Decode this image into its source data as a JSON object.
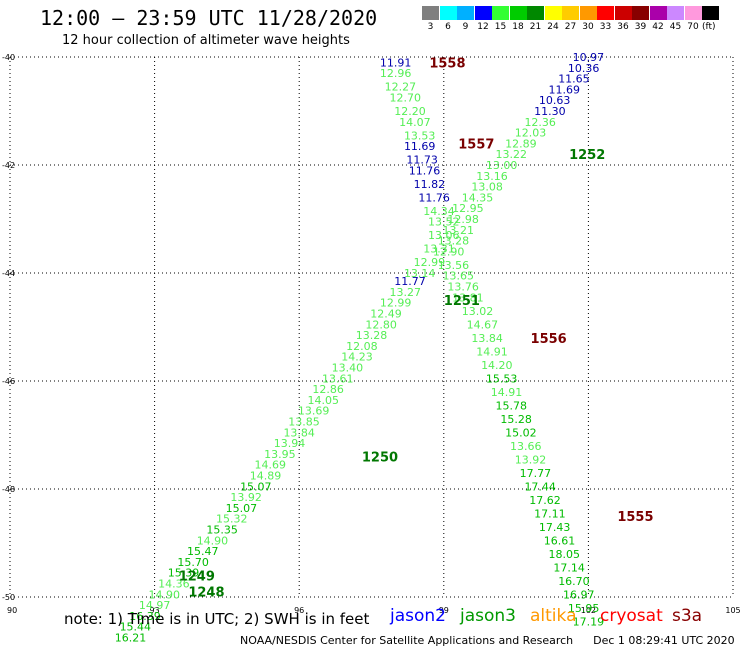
{
  "header": {
    "title": "12:00 – 23:59 UTC 11/28/2020",
    "subtitle": "12 hour collection of altimeter wave heights"
  },
  "legend": {
    "unit": "(ft)",
    "levels": [
      {
        "label": "3",
        "color": "#7f7f7f"
      },
      {
        "label": "6",
        "color": "#00ffff"
      },
      {
        "label": "9",
        "color": "#00b0ff"
      },
      {
        "label": "12",
        "color": "#0000ff"
      },
      {
        "label": "15",
        "color": "#33ff33"
      },
      {
        "label": "18",
        "color": "#00cc00"
      },
      {
        "label": "21",
        "color": "#008800"
      },
      {
        "label": "24",
        "color": "#ffff00"
      },
      {
        "label": "27",
        "color": "#ffcc00"
      },
      {
        "label": "30",
        "color": "#ff9900"
      },
      {
        "label": "33",
        "color": "#ff0000"
      },
      {
        "label": "36",
        "color": "#cc0000"
      },
      {
        "label": "39",
        "color": "#880000"
      },
      {
        "label": "42",
        "color": "#aa00aa"
      },
      {
        "label": "45",
        "color": "#cc88ff"
      },
      {
        "label": "70",
        "color": "#ff99dd"
      },
      {
        "label": "",
        "color": "#000000"
      }
    ]
  },
  "note": "note: 1) Time is in UTC; 2) SWH is in feet",
  "satellites": [
    {
      "name": "jason2",
      "color": "#0000ff"
    },
    {
      "name": "jason3",
      "color": "#009900"
    },
    {
      "name": "altika",
      "color": "#ff9900"
    },
    {
      "name": "cryosat",
      "color": "#ff0000"
    },
    {
      "name": "s3a",
      "color": "#880000"
    }
  ],
  "footer": {
    "credit": "NOAA/NESDIS Center for Satellite Applications and Research",
    "timestamp": "Dec  1 08:29:41 UTC 2020"
  },
  "colors": {
    "blue": "#0000aa",
    "light_green": "#55ee55",
    "green": "#00bb00",
    "dark_green": "#007700",
    "maroon": "#7a0000"
  },
  "chart_data": {
    "type": "scatter",
    "xlim": [
      90,
      105
    ],
    "ylim": [
      -50,
      -40
    ],
    "x_ticks": [
      "90",
      "93",
      "96",
      "99",
      "102",
      "105"
    ],
    "y_ticks": [
      "-40",
      "-42",
      "-44",
      "-46",
      "-48",
      "-50"
    ],
    "grid": true,
    "track_labels": [
      {
        "text": "1558",
        "x": 98.7,
        "y": -40.1,
        "color": "maroon"
      },
      {
        "text": "1557",
        "x": 99.3,
        "y": -41.6,
        "color": "maroon"
      },
      {
        "text": "1252",
        "x": 101.6,
        "y": -41.8,
        "color": "dark_green"
      },
      {
        "text": "1251",
        "x": 99.0,
        "y": -44.5,
        "color": "dark_green"
      },
      {
        "text": "1556",
        "x": 100.8,
        "y": -45.2,
        "color": "maroon"
      },
      {
        "text": "1250",
        "x": 97.3,
        "y": -47.4,
        "color": "dark_green"
      },
      {
        "text": "1555",
        "x": 102.6,
        "y": -48.5,
        "color": "maroon"
      },
      {
        "text": "1249",
        "x": 93.5,
        "y": -49.6,
        "color": "dark_green"
      },
      {
        "text": "1248",
        "x": 93.7,
        "y": -49.9,
        "color": "dark_green"
      }
    ],
    "points": [
      {
        "v": "11.91",
        "x": 98.0,
        "y": -40.1,
        "color": "blue"
      },
      {
        "v": "12.96",
        "x": 98.0,
        "y": -40.3,
        "color": "light_green"
      },
      {
        "v": "12.27",
        "x": 98.1,
        "y": -40.55,
        "color": "light_green"
      },
      {
        "v": "12.70",
        "x": 98.2,
        "y": -40.75,
        "color": "light_green"
      },
      {
        "v": "12.20",
        "x": 98.3,
        "y": -41.0,
        "color": "light_green"
      },
      {
        "v": "14.07",
        "x": 98.4,
        "y": -41.2,
        "color": "light_green"
      },
      {
        "v": "13.53",
        "x": 98.5,
        "y": -41.45,
        "color": "light_green"
      },
      {
        "v": "11.69",
        "x": 98.5,
        "y": -41.65,
        "color": "blue"
      },
      {
        "v": "11.73",
        "x": 98.55,
        "y": -41.9,
        "color": "blue"
      },
      {
        "v": "11.76",
        "x": 98.6,
        "y": -42.1,
        "color": "blue"
      },
      {
        "v": "11.82",
        "x": 98.7,
        "y": -42.35,
        "color": "blue"
      },
      {
        "v": "11.76",
        "x": 98.8,
        "y": -42.6,
        "color": "blue"
      },
      {
        "v": "14.34",
        "x": 98.9,
        "y": -42.85,
        "color": "light_green"
      },
      {
        "v": "13.52",
        "x": 99.0,
        "y": -43.05,
        "color": "light_green"
      },
      {
        "v": "13.06",
        "x": 99.0,
        "y": -43.3,
        "color": "light_green"
      },
      {
        "v": "13.31",
        "x": 98.9,
        "y": -43.55,
        "color": "light_green"
      },
      {
        "v": "12.99",
        "x": 98.7,
        "y": -43.8,
        "color": "light_green"
      },
      {
        "v": "13.14",
        "x": 98.5,
        "y": -44.0,
        "color": "light_green"
      },
      {
        "v": "11.77",
        "x": 98.3,
        "y": -44.15,
        "color": "blue"
      },
      {
        "v": "13.27",
        "x": 98.2,
        "y": -44.35,
        "color": "light_green"
      },
      {
        "v": "12.99",
        "x": 98.0,
        "y": -44.55,
        "color": "light_green"
      },
      {
        "v": "12.49",
        "x": 97.8,
        "y": -44.75,
        "color": "light_green"
      },
      {
        "v": "12.80",
        "x": 97.7,
        "y": -44.95,
        "color": "light_green"
      },
      {
        "v": "13.28",
        "x": 97.5,
        "y": -45.15,
        "color": "light_green"
      },
      {
        "v": "12.08",
        "x": 97.3,
        "y": -45.35,
        "color": "light_green"
      },
      {
        "v": "14.23",
        "x": 97.2,
        "y": -45.55,
        "color": "light_green"
      },
      {
        "v": "13.40",
        "x": 97.0,
        "y": -45.75,
        "color": "light_green"
      },
      {
        "v": "13.61",
        "x": 96.8,
        "y": -45.95,
        "color": "light_green"
      },
      {
        "v": "12.86",
        "x": 96.6,
        "y": -46.15,
        "color": "light_green"
      },
      {
        "v": "14.05",
        "x": 96.5,
        "y": -46.35,
        "color": "light_green"
      },
      {
        "v": "13.69",
        "x": 96.3,
        "y": -46.55,
        "color": "light_green"
      },
      {
        "v": "13.85",
        "x": 96.1,
        "y": -46.75,
        "color": "light_green"
      },
      {
        "v": "13.84",
        "x": 96.0,
        "y": -46.95,
        "color": "light_green"
      },
      {
        "v": "13.94",
        "x": 95.8,
        "y": -47.15,
        "color": "light_green"
      },
      {
        "v": "13.95",
        "x": 95.6,
        "y": -47.35,
        "color": "light_green"
      },
      {
        "v": "14.69",
        "x": 95.4,
        "y": -47.55,
        "color": "light_green"
      },
      {
        "v": "14.89",
        "x": 95.3,
        "y": -47.75,
        "color": "light_green"
      },
      {
        "v": "15.07",
        "x": 95.1,
        "y": -47.95,
        "color": "green"
      },
      {
        "v": "13.92",
        "x": 94.9,
        "y": -48.15,
        "color": "light_green"
      },
      {
        "v": "15.07",
        "x": 94.8,
        "y": -48.35,
        "color": "green"
      },
      {
        "v": "15.32",
        "x": 94.6,
        "y": -48.55,
        "color": "light_green"
      },
      {
        "v": "15.35",
        "x": 94.4,
        "y": -48.75,
        "color": "green"
      },
      {
        "v": "14.90",
        "x": 94.2,
        "y": -48.95,
        "color": "light_green"
      },
      {
        "v": "15.47",
        "x": 94.0,
        "y": -49.15,
        "color": "green"
      },
      {
        "v": "15.70",
        "x": 93.8,
        "y": -49.35,
        "color": "green"
      },
      {
        "v": "15.39",
        "x": 93.6,
        "y": -49.55,
        "color": "green"
      },
      {
        "v": "14.36",
        "x": 93.4,
        "y": -49.75,
        "color": "light_green"
      },
      {
        "v": "14.90",
        "x": 93.2,
        "y": -49.95,
        "color": "light_green"
      },
      {
        "v": "14.97",
        "x": 93.0,
        "y": -50.15,
        "color": "light_green"
      },
      {
        "v": "16.39",
        "x": 92.8,
        "y": -50.35,
        "color": "green"
      },
      {
        "v": "15.44",
        "x": 92.6,
        "y": -50.55,
        "color": "green"
      },
      {
        "v": "16.21",
        "x": 92.5,
        "y": -50.75,
        "color": "green"
      },
      {
        "v": "10.97",
        "x": 102.0,
        "y": -40.0,
        "color": "blue"
      },
      {
        "v": "10.36",
        "x": 101.9,
        "y": -40.2,
        "color": "blue"
      },
      {
        "v": "11.65",
        "x": 101.7,
        "y": -40.4,
        "color": "blue"
      },
      {
        "v": "11.69",
        "x": 101.5,
        "y": -40.6,
        "color": "blue"
      },
      {
        "v": "10.63",
        "x": 101.3,
        "y": -40.8,
        "color": "blue"
      },
      {
        "v": "11.30",
        "x": 101.2,
        "y": -41.0,
        "color": "blue"
      },
      {
        "v": "12.36",
        "x": 101.0,
        "y": -41.2,
        "color": "light_green"
      },
      {
        "v": "12.03",
        "x": 100.8,
        "y": -41.4,
        "color": "light_green"
      },
      {
        "v": "12.89",
        "x": 100.6,
        "y": -41.6,
        "color": "light_green"
      },
      {
        "v": "13.22",
        "x": 100.4,
        "y": -41.8,
        "color": "light_green"
      },
      {
        "v": "13.00",
        "x": 100.2,
        "y": -42.0,
        "color": "light_green"
      },
      {
        "v": "13.16",
        "x": 100.0,
        "y": -42.2,
        "color": "light_green"
      },
      {
        "v": "13.08",
        "x": 99.9,
        "y": -42.4,
        "color": "light_green"
      },
      {
        "v": "14.35",
        "x": 99.7,
        "y": -42.6,
        "color": "light_green"
      },
      {
        "v": "12.95",
        "x": 99.5,
        "y": -42.8,
        "color": "light_green"
      },
      {
        "v": "12.98",
        "x": 99.4,
        "y": -43.0,
        "color": "light_green"
      },
      {
        "v": "13.21",
        "x": 99.3,
        "y": -43.2,
        "color": "light_green"
      },
      {
        "v": "13.28",
        "x": 99.2,
        "y": -43.4,
        "color": "light_green"
      },
      {
        "v": "12.90",
        "x": 99.1,
        "y": -43.6,
        "color": "light_green"
      },
      {
        "v": "13.56",
        "x": 99.2,
        "y": -43.85,
        "color": "light_green"
      },
      {
        "v": "13.65",
        "x": 99.3,
        "y": -44.05,
        "color": "light_green"
      },
      {
        "v": "13.76",
        "x": 99.4,
        "y": -44.25,
        "color": "light_green"
      },
      {
        "v": "13.81",
        "x": 99.5,
        "y": -44.45,
        "color": "light_green"
      },
      {
        "v": "13.02",
        "x": 99.7,
        "y": -44.7,
        "color": "light_green"
      },
      {
        "v": "14.67",
        "x": 99.8,
        "y": -44.95,
        "color": "light_green"
      },
      {
        "v": "13.84",
        "x": 99.9,
        "y": -45.2,
        "color": "light_green"
      },
      {
        "v": "14.91",
        "x": 100.0,
        "y": -45.45,
        "color": "light_green"
      },
      {
        "v": "14.20",
        "x": 100.1,
        "y": -45.7,
        "color": "light_green"
      },
      {
        "v": "15.53",
        "x": 100.2,
        "y": -45.95,
        "color": "green"
      },
      {
        "v": "14.91",
        "x": 100.3,
        "y": -46.2,
        "color": "light_green"
      },
      {
        "v": "15.78",
        "x": 100.4,
        "y": -46.45,
        "color": "green"
      },
      {
        "v": "15.28",
        "x": 100.5,
        "y": -46.7,
        "color": "green"
      },
      {
        "v": "15.02",
        "x": 100.6,
        "y": -46.95,
        "color": "green"
      },
      {
        "v": "13.66",
        "x": 100.7,
        "y": -47.2,
        "color": "light_green"
      },
      {
        "v": "13.92",
        "x": 100.8,
        "y": -47.45,
        "color": "light_green"
      },
      {
        "v": "17.77",
        "x": 100.9,
        "y": -47.7,
        "color": "green"
      },
      {
        "v": "17.44",
        "x": 101.0,
        "y": -47.95,
        "color": "green"
      },
      {
        "v": "17.62",
        "x": 101.1,
        "y": -48.2,
        "color": "green"
      },
      {
        "v": "17.11",
        "x": 101.2,
        "y": -48.45,
        "color": "green"
      },
      {
        "v": "17.43",
        "x": 101.3,
        "y": -48.7,
        "color": "green"
      },
      {
        "v": "16.61",
        "x": 101.4,
        "y": -48.95,
        "color": "green"
      },
      {
        "v": "18.05",
        "x": 101.5,
        "y": -49.2,
        "color": "green"
      },
      {
        "v": "17.14",
        "x": 101.6,
        "y": -49.45,
        "color": "green"
      },
      {
        "v": "16.70",
        "x": 101.7,
        "y": -49.7,
        "color": "green"
      },
      {
        "v": "16.97",
        "x": 101.8,
        "y": -49.95,
        "color": "green"
      },
      {
        "v": "15.95",
        "x": 101.9,
        "y": -50.2,
        "color": "green"
      },
      {
        "v": "17.19",
        "x": 102.0,
        "y": -50.45,
        "color": "green"
      }
    ]
  }
}
